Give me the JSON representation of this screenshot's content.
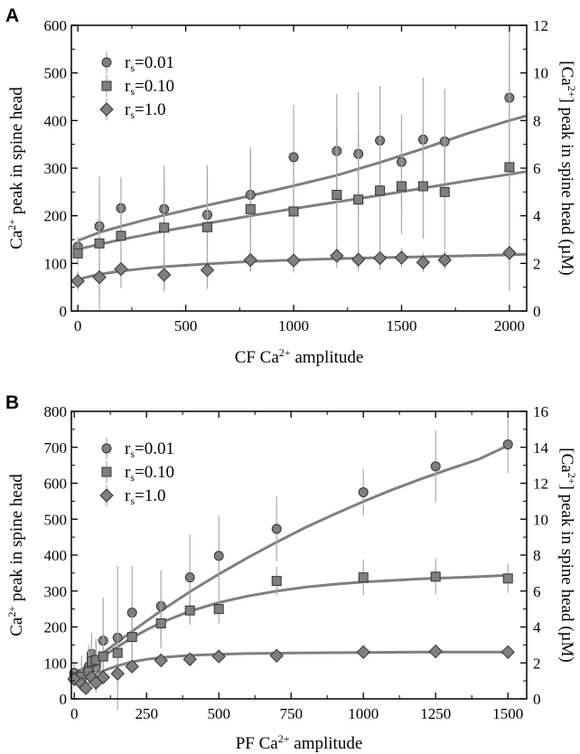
{
  "colors": {
    "axis": "#000000",
    "curve": "#7f7f7f",
    "marker_fill": "#7f7f7f",
    "marker_stroke": "#333333",
    "errorbar": "#a8a8a8"
  },
  "chart_data": [
    {
      "panel": "A",
      "type": "scatter",
      "grid": false,
      "legend_position": "top-left",
      "xlabel": {
        "pre": "CF Ca",
        "sup": "2+",
        "post": " amplitude"
      },
      "ylabel_left": {
        "pre": "Ca",
        "sup": "2+",
        "post": " peak in spine head"
      },
      "ylabel_right": {
        "pre": "[Ca",
        "sup": "2+",
        "post": "] peak in spine head (µM)"
      },
      "xlim": [
        -30,
        2080
      ],
      "ylim": [
        0,
        600
      ],
      "ylim_right": [
        0,
        12
      ],
      "x_ticks": [
        0,
        500,
        1000,
        1500,
        2000
      ],
      "y_ticks": [
        0,
        100,
        200,
        300,
        400,
        500,
        600
      ],
      "y_ticks_right": [
        0,
        2,
        4,
        6,
        8,
        10,
        12
      ],
      "series": [
        {
          "name": "rs=0.01",
          "name_parts": [
            "r",
            "s",
            "=0.01"
          ],
          "marker": "circle",
          "x": [
            0,
            100,
            200,
            400,
            600,
            800,
            1000,
            1200,
            1300,
            1400,
            1500,
            1600,
            1700,
            2000
          ],
          "y": [
            135,
            178,
            216,
            214,
            202,
            244,
            323,
            336,
            330,
            358,
            313,
            360,
            356,
            448
          ],
          "err": [
            20,
            55,
            65,
            60,
            80,
            90,
            110,
            120,
            130,
            115,
            100,
            130,
            110,
            140
          ],
          "fit": {
            "x": [
              0,
              100,
              200,
              300,
              400,
              600,
              800,
              1000,
              1200,
              1400,
              1600,
              1800,
              2000,
              2080
            ],
            "y": [
              148,
              165,
              178,
              190,
              201,
              222,
              242,
              263,
              285,
              312,
              341,
              372,
              400,
              410
            ]
          }
        },
        {
          "name": "rs=0.10",
          "name_parts": [
            "r",
            "s",
            "=0.10"
          ],
          "marker": "square",
          "x": [
            0,
            100,
            200,
            400,
            600,
            800,
            1000,
            1200,
            1300,
            1400,
            1500,
            1600,
            1700,
            2000
          ],
          "y": [
            121,
            142,
            158,
            175,
            176,
            214,
            209,
            244,
            234,
            253,
            262,
            262,
            250,
            302
          ],
          "err": [
            25,
            140,
            70,
            130,
            130,
            130,
            100,
            140,
            140,
            120,
            100,
            110,
            120,
            260
          ],
          "fit": {
            "x": [
              0,
              100,
              200,
              300,
              400,
              600,
              800,
              1000,
              1200,
              1400,
              1600,
              1800,
              2000,
              2080
            ],
            "y": [
              130,
              140,
              150,
              159,
              168,
              184,
              200,
              215,
              229,
              243,
              258,
              273,
              287,
              293
            ]
          }
        },
        {
          "name": "rs=1.0",
          "name_parts": [
            "r",
            "s",
            "=1.0"
          ],
          "marker": "diamond",
          "x": [
            0,
            100,
            200,
            400,
            600,
            800,
            1000,
            1200,
            1300,
            1400,
            1500,
            1600,
            1700,
            2000
          ],
          "y": [
            63,
            71,
            88,
            76,
            86,
            107,
            106,
            116,
            108,
            111,
            112,
            102,
            107,
            122
          ],
          "err": [
            20,
            35,
            40,
            35,
            30,
            25,
            25,
            25,
            25,
            25,
            20,
            20,
            20,
            20
          ],
          "fit": {
            "x": [
              0,
              50,
              100,
              200,
              300,
              400,
              600,
              800,
              1000,
              1200,
              1400,
              1600,
              1800,
              2000,
              2080
            ],
            "y": [
              66,
              72,
              77,
              84,
              89,
              93,
              99,
              104,
              107,
              110,
              112,
              114,
              116,
              118,
              119
            ]
          }
        }
      ]
    },
    {
      "panel": "B",
      "type": "scatter",
      "grid": false,
      "legend_position": "top-left",
      "xlabel": {
        "pre": "PF Ca",
        "sup": "2+",
        "post": " amplitude"
      },
      "ylabel_left": {
        "pre": "Ca",
        "sup": "2+",
        "post": " peak in spine head"
      },
      "ylabel_right": {
        "pre": "[Ca",
        "sup": "2+",
        "post": "] peak in spine head (µM)"
      },
      "xlim": [
        -10,
        1565
      ],
      "ylim": [
        0,
        800
      ],
      "ylim_right": [
        0,
        16
      ],
      "x_ticks": [
        0,
        250,
        500,
        750,
        1000,
        1250,
        1500
      ],
      "y_ticks": [
        0,
        100,
        200,
        300,
        400,
        500,
        600,
        700,
        800
      ],
      "y_ticks_right": [
        0,
        2,
        4,
        6,
        8,
        10,
        12,
        14,
        16
      ],
      "series": [
        {
          "name": "rs=0.01",
          "name_parts": [
            "r",
            "s",
            "=0.01"
          ],
          "marker": "circle",
          "x": [
            0,
            25,
            50,
            60,
            75,
            100,
            150,
            200,
            300,
            400,
            500,
            700,
            1000,
            1250,
            1500
          ],
          "y": [
            72,
            70,
            90,
            125,
            88,
            162,
            170,
            240,
            258,
            338,
            398,
            473,
            575,
            647,
            708
          ],
          "err": [
            30,
            50,
            60,
            60,
            70,
            120,
            200,
            130,
            100,
            120,
            110,
            90,
            65,
            100,
            80
          ],
          "fit": {
            "x": [
              0,
              50,
              100,
              150,
              200,
              300,
              400,
              500,
              600,
              700,
              800,
              900,
              1000,
              1100,
              1200,
              1300,
              1400,
              1500
            ],
            "y": [
              64,
              96,
              128,
              158,
              188,
              245,
              298,
              347,
              393,
              436,
              477,
              514,
              549,
              582,
              612,
              640,
              667,
              705
            ]
          }
        },
        {
          "name": "rs=0.10",
          "name_parts": [
            "r",
            "s",
            "=0.10"
          ],
          "marker": "square",
          "x": [
            0,
            25,
            50,
            60,
            75,
            100,
            150,
            200,
            300,
            400,
            500,
            700,
            1000,
            1250,
            1500
          ],
          "y": [
            60,
            62,
            75,
            104,
            108,
            118,
            128,
            172,
            210,
            246,
            250,
            328,
            338,
            340,
            335
          ],
          "err": [
            20,
            40,
            60,
            60,
            60,
            70,
            60,
            60,
            70,
            40,
            40,
            40,
            50,
            50,
            40
          ],
          "fit": {
            "x": [
              0,
              50,
              100,
              150,
              200,
              250,
              300,
              400,
              500,
              600,
              700,
              800,
              900,
              1000,
              1200,
              1400,
              1500
            ],
            "y": [
              60,
              88,
              118,
              145,
              170,
              192,
              212,
              244,
              268,
              286,
              300,
              311,
              319,
              325,
              334,
              340,
              344
            ]
          }
        },
        {
          "name": "rs=1.0",
          "name_parts": [
            "r",
            "s",
            "=1.0"
          ],
          "marker": "diamond",
          "x": [
            0,
            25,
            40,
            60,
            75,
            100,
            150,
            200,
            300,
            400,
            500,
            700,
            1000,
            1250,
            1500
          ],
          "y": [
            55,
            42,
            30,
            60,
            45,
            60,
            70,
            90,
            107,
            110,
            118,
            120,
            130,
            132,
            130
          ],
          "err": [
            20,
            20,
            20,
            20,
            20,
            15,
            15,
            15,
            10,
            10,
            10,
            10,
            10,
            10,
            10
          ],
          "fit": {
            "x": [
              0,
              50,
              100,
              150,
              200,
              250,
              300,
              400,
              500,
              600,
              800,
              1000,
              1200,
              1500
            ],
            "y": [
              50,
              62,
              78,
              92,
              103,
              110,
              115,
              121,
              124,
              126,
              128,
              129,
              130,
              130
            ]
          }
        }
      ]
    }
  ]
}
